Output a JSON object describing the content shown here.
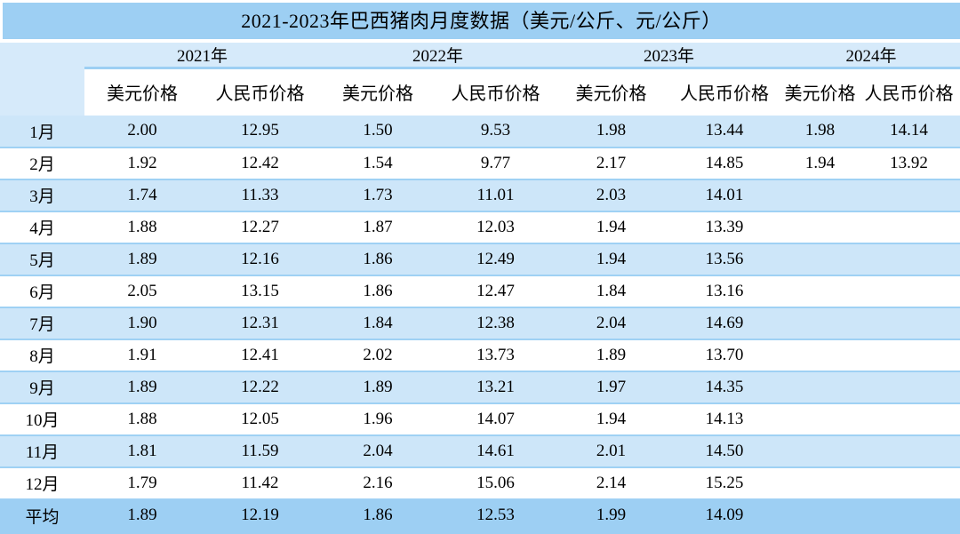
{
  "title": "2021-2023年巴西猪肉月度数据（美元/公斤、元/公斤）",
  "header": {
    "years": [
      "2021年",
      "2022年",
      "2023年",
      "2024年"
    ],
    "price_type_labels": [
      "美元价格",
      "人民币价格",
      "美元价格",
      "人民币价格",
      "美元价格",
      "人民币价格",
      "美元价格",
      "人民币价格"
    ]
  },
  "average_row_label": "平均",
  "colors": {
    "title_bar_bg": "#9DCFF3",
    "year_header_bg": "#D6EAFA",
    "striped_row_bg": "#CDE6F9",
    "plain_row_bg": "#FFFFFF",
    "average_row_bg": "#9DCFF3",
    "row_divider": "#9FD1F4",
    "bottom_edge": "#85C1ED",
    "text": "#000000"
  },
  "chart_data": {
    "type": "table",
    "title": "2021-2023年巴西猪肉月度数据（美元/公斤、元/公斤）",
    "categories": [
      "1月",
      "2月",
      "3月",
      "4月",
      "5月",
      "6月",
      "7月",
      "8月",
      "9月",
      "10月",
      "11月",
      "12月",
      "平均"
    ],
    "series": [
      {
        "name": "2021年 美元价格",
        "values": [
          "2.00",
          "1.92",
          "1.74",
          "1.88",
          "1.89",
          "2.05",
          "1.90",
          "1.91",
          "1.89",
          "1.88",
          "1.81",
          "1.79",
          "1.89"
        ]
      },
      {
        "name": "2021年 人民币价格",
        "values": [
          "12.95",
          "12.42",
          "11.33",
          "12.27",
          "12.16",
          "13.15",
          "12.31",
          "12.41",
          "12.22",
          "12.05",
          "11.59",
          "11.42",
          "12.19"
        ]
      },
      {
        "name": "2022年 美元价格",
        "values": [
          "1.50",
          "1.54",
          "1.73",
          "1.87",
          "1.86",
          "1.86",
          "1.84",
          "2.02",
          "1.89",
          "1.96",
          "2.04",
          "2.16",
          "1.86"
        ]
      },
      {
        "name": "2022年 人民币价格",
        "values": [
          "9.53",
          "9.77",
          "11.01",
          "12.03",
          "12.49",
          "12.47",
          "12.38",
          "13.73",
          "13.21",
          "14.07",
          "14.61",
          "15.06",
          "12.53"
        ]
      },
      {
        "name": "2023年 美元价格",
        "values": [
          "1.98",
          "2.17",
          "2.03",
          "1.94",
          "1.94",
          "1.84",
          "2.04",
          "1.89",
          "1.97",
          "1.94",
          "2.01",
          "2.14",
          "1.99"
        ]
      },
      {
        "name": "2023年 人民币价格",
        "values": [
          "13.44",
          "14.85",
          "14.01",
          "13.39",
          "13.56",
          "13.16",
          "14.69",
          "13.70",
          "14.35",
          "14.13",
          "14.50",
          "15.25",
          "14.09"
        ]
      },
      {
        "name": "2024年 美元价格",
        "values": [
          "1.98",
          "1.94",
          null,
          null,
          null,
          null,
          null,
          null,
          null,
          null,
          null,
          null,
          null
        ]
      },
      {
        "name": "2024年 人民币价格",
        "values": [
          "14.14",
          "13.92",
          null,
          null,
          null,
          null,
          null,
          null,
          null,
          null,
          null,
          null,
          null
        ]
      }
    ]
  }
}
